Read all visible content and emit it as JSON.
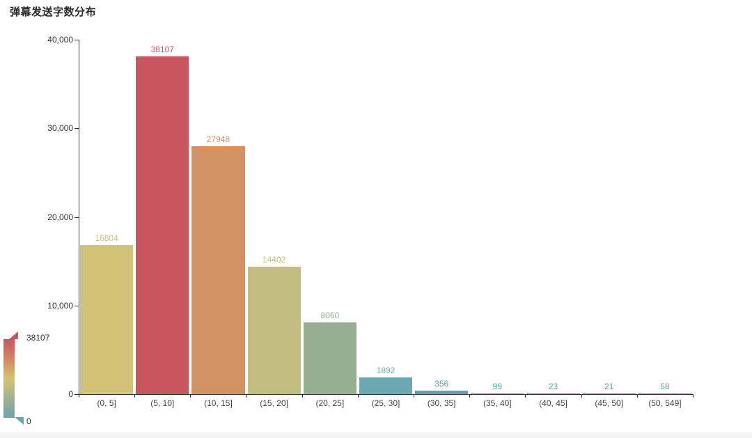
{
  "title": "弹幕发送字数分布",
  "chart_data": {
    "type": "bar",
    "title": "弹幕发送字数分布",
    "categories": [
      "(0, 5]",
      "(5, 10]",
      "(10, 15]",
      "(15, 20]",
      "(20, 25]",
      "(25, 30]",
      "(30, 35]",
      "(35, 40]",
      "(40, 45]",
      "(45, 50]",
      "(50, 549]"
    ],
    "values": [
      16804,
      38107,
      27948,
      14402,
      8060,
      1892,
      356,
      99,
      23,
      21,
      58
    ],
    "bar_colors": [
      "#d2c278",
      "#c9565f",
      "#d29263",
      "#c2bc80",
      "#97ae93",
      "#6ba7b0",
      "#60a1ad",
      "#5d9fad",
      "#5d9fad",
      "#5d9fad",
      "#5fa0ad"
    ],
    "xlabel": "",
    "ylabel": "",
    "ylim": [
      0,
      40000
    ],
    "yticks": [
      0,
      10000,
      20000,
      30000,
      40000
    ],
    "ytick_labels": [
      "0",
      "10,000",
      "20,000",
      "30,000",
      "40,000"
    ],
    "grid": false,
    "legend": "none",
    "visual_map": {
      "position": "bottom-left",
      "max": 38107,
      "min": 0,
      "max_label": "38107",
      "min_label": "0",
      "gradient_top_to_bottom": [
        "#c9565f",
        "#d29263",
        "#d2c278",
        "#c2bc80",
        "#97ae93",
        "#6ba7b0"
      ]
    }
  }
}
